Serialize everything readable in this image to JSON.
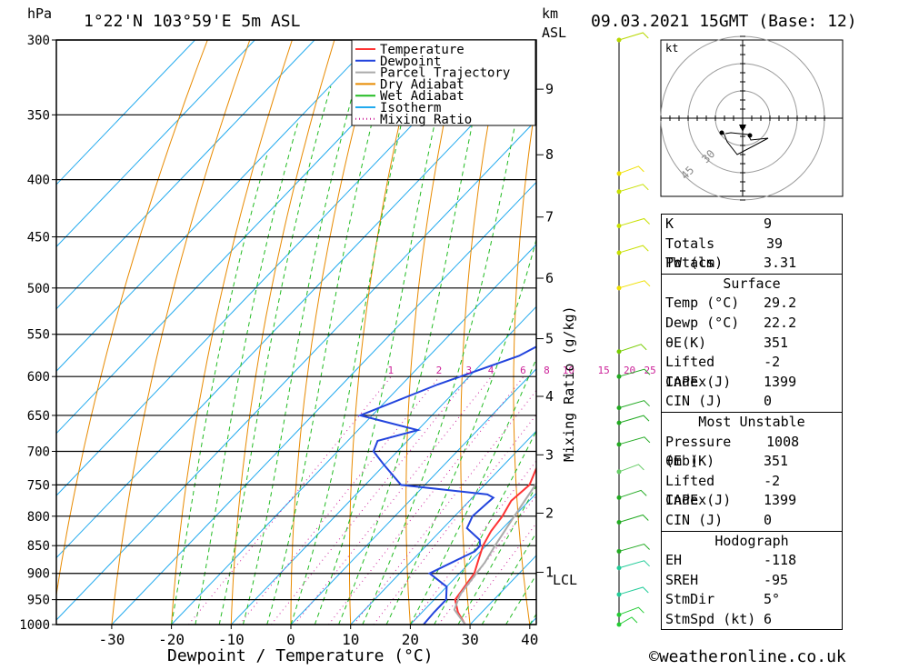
{
  "header": {
    "pressure_unit": "hPa",
    "location": "1°22'N 103°59'E 5m ASL",
    "km_label_1": "km",
    "km_label_2": "ASL",
    "datetime": "09.03.2021 15GMT (Base: 12)"
  },
  "footer": {
    "xlabel": "Dewpoint / Temperature (°C)",
    "credit": "©weatheronline.co.uk",
    "mixing_ratio_label": "Mixing Ratio (g/kg)",
    "lcl_label": "LCL"
  },
  "legend": [
    {
      "name": "Temperature",
      "color": "#ff3333",
      "dotted": false
    },
    {
      "name": "Dewpoint",
      "color": "#2244dd",
      "dotted": false
    },
    {
      "name": "Parcel Trajectory",
      "color": "#aaaaaa",
      "dotted": false
    },
    {
      "name": "Dry Adiabat",
      "color": "#e88a00",
      "dotted": false
    },
    {
      "name": "Wet Adiabat",
      "color": "#22bb22",
      "dotted": false
    },
    {
      "name": "Isotherm",
      "color": "#22aaee",
      "dotted": false
    },
    {
      "name": "Mixing Ratio",
      "color": "#cc2299",
      "dotted": true
    }
  ],
  "hodograph": {
    "unit": "kt",
    "rings": [
      "30",
      "45"
    ]
  },
  "indices": {
    "k": {
      "label": "K",
      "value": "9"
    },
    "tt": {
      "label": "Totals Totals",
      "value": "39"
    },
    "pw": {
      "label": "PW (cm)",
      "value": "3.31"
    }
  },
  "surface": {
    "title": "Surface",
    "rows": [
      {
        "label": "Temp (°C)",
        "value": "29.2"
      },
      {
        "label": "Dewp (°C)",
        "value": "22.2"
      },
      {
        "label": "θE(K)",
        "value": "351"
      },
      {
        "label": "Lifted Index",
        "value": "-2"
      },
      {
        "label": "CAPE (J)",
        "value": "1399"
      },
      {
        "label": "CIN (J)",
        "value": "0"
      }
    ]
  },
  "most_unstable": {
    "title": "Most Unstable",
    "rows": [
      {
        "label": "Pressure (mb)",
        "value": "1008"
      },
      {
        "label": "θE (K)",
        "value": "351"
      },
      {
        "label": "Lifted Index",
        "value": "-2"
      },
      {
        "label": "CAPE (J)",
        "value": "1399"
      },
      {
        "label": "CIN (J)",
        "value": "0"
      }
    ]
  },
  "hodo_table": {
    "title": "Hodograph",
    "rows": [
      {
        "label": "EH",
        "value": "-118"
      },
      {
        "label": "SREH",
        "value": "-95"
      },
      {
        "label": "StmDir",
        "value": "5°"
      },
      {
        "label": "StmSpd (kt)",
        "value": "6"
      }
    ]
  },
  "chart_data": {
    "type": "line",
    "title": "1°22'N 103°59'E 5m ASL",
    "xlabel": "Dewpoint / Temperature (°C)",
    "ylabel": "hPa",
    "x_ticks": [
      -30,
      -20,
      -10,
      0,
      10,
      20,
      30,
      40
    ],
    "pressure_levels": [
      300,
      350,
      400,
      450,
      500,
      550,
      600,
      650,
      700,
      750,
      800,
      850,
      900,
      950,
      1000
    ],
    "km_ticks": [
      {
        "label": "1",
        "p": 898
      },
      {
        "label": "2",
        "p": 795
      },
      {
        "label": "3",
        "p": 705
      },
      {
        "label": "4",
        "p": 625
      },
      {
        "label": "5",
        "p": 555
      },
      {
        "label": "6",
        "p": 490
      },
      {
        "label": "7",
        "p": 432
      },
      {
        "label": "8",
        "p": 380
      },
      {
        "label": "9",
        "p": 332
      }
    ],
    "mixing_ratio_values": [
      "1",
      "2",
      "3",
      "4",
      "6",
      "8",
      "10",
      "15",
      "20",
      "25"
    ],
    "series": [
      {
        "name": "Temperature",
        "color": "#ff3333",
        "points": [
          [
            29.2,
            1000
          ],
          [
            26,
            975
          ],
          [
            23.5,
            950
          ],
          [
            23,
            925
          ],
          [
            22.5,
            900
          ],
          [
            21,
            875
          ],
          [
            19.5,
            850
          ],
          [
            18.5,
            825
          ],
          [
            18,
            800
          ],
          [
            17,
            775
          ],
          [
            17.5,
            750
          ],
          [
            16,
            725
          ],
          [
            15.5,
            700
          ],
          [
            14.5,
            675
          ],
          [
            13.5,
            650
          ],
          [
            11.5,
            620
          ],
          [
            10,
            600
          ],
          [
            8,
            575
          ],
          [
            8.5,
            560
          ],
          [
            7,
            550
          ],
          [
            5,
            525
          ],
          [
            3,
            500
          ],
          [
            1,
            475
          ],
          [
            -1,
            450
          ],
          [
            -3.5,
            425
          ],
          [
            -5.5,
            400
          ],
          [
            -8,
            380
          ],
          [
            -10,
            360
          ],
          [
            -13,
            350
          ],
          [
            -17,
            325
          ],
          [
            -20,
            300
          ]
        ]
      },
      {
        "name": "Dewpoint",
        "color": "#2244dd",
        "points": [
          [
            22.2,
            1000
          ],
          [
            22,
            975
          ],
          [
            22,
            950
          ],
          [
            20,
            925
          ],
          [
            15,
            900
          ],
          [
            17,
            880
          ],
          [
            19,
            860
          ],
          [
            19,
            850
          ],
          [
            18,
            840
          ],
          [
            14,
            820
          ],
          [
            13,
            800
          ],
          [
            13.5,
            770
          ],
          [
            12,
            765
          ],
          [
            -4,
            750
          ],
          [
            -10,
            720
          ],
          [
            -14,
            700
          ],
          [
            -15,
            685
          ],
          [
            -10,
            670
          ],
          [
            -22,
            650
          ],
          [
            -14,
            610
          ],
          [
            -5,
            575
          ],
          [
            -3,
            560
          ],
          [
            -5,
            525
          ],
          [
            -5,
            505
          ],
          [
            2,
            500
          ],
          [
            -5,
            480
          ],
          [
            4,
            470
          ],
          [
            0,
            468
          ],
          [
            2,
            455
          ],
          [
            0,
            450
          ],
          [
            2,
            435
          ],
          [
            -3,
            410
          ],
          [
            2,
            395
          ],
          [
            -1,
            390
          ],
          [
            -3,
            380
          ],
          [
            -3,
            360
          ],
          [
            -5,
            350
          ],
          [
            -3,
            340
          ],
          [
            0,
            328
          ],
          [
            -3,
            318
          ],
          [
            -4,
            305
          ],
          [
            -5,
            300
          ]
        ]
      },
      {
        "name": "Parcel Trajectory",
        "color": "#aaaaaa",
        "points": [
          [
            29.2,
            1000
          ],
          [
            25,
            970
          ],
          [
            23.5,
            940
          ],
          [
            23,
            910
          ],
          [
            22.5,
            880
          ],
          [
            21.5,
            850
          ],
          [
            20,
            800
          ],
          [
            18.5,
            750
          ],
          [
            17.5,
            700
          ],
          [
            16,
            650
          ],
          [
            14,
            600
          ],
          [
            11.5,
            550
          ],
          [
            8.5,
            500
          ],
          [
            5,
            450
          ],
          [
            1,
            400
          ],
          [
            -2.5,
            370
          ]
        ]
      }
    ],
    "wind_profile_knots": "shown as barbs"
  }
}
